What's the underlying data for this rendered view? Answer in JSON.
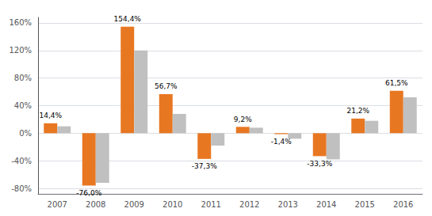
{
  "chart_data": {
    "type": "bar",
    "categories": [
      "2007",
      "2008",
      "2009",
      "2010",
      "2011",
      "2012",
      "2013",
      "2014",
      "2015",
      "2016"
    ],
    "series": [
      {
        "color": "#E87722",
        "values": [
          14.4,
          -76.0,
          154.4,
          56.7,
          -37.3,
          9.2,
          -1.4,
          -33.3,
          21.2,
          61.5
        ],
        "value_labels": [
          "14,4%",
          "-76,0%",
          "154,4%",
          "56,7%",
          "-37,3%",
          "9,2%",
          "-1,4%",
          "-33,3%",
          "21,2%",
          "61,5%"
        ],
        "data_labels": true
      },
      {
        "color": "#C0C0C0",
        "values": [
          10.0,
          -72.0,
          120.0,
          28.0,
          -18.0,
          8.0,
          -8.0,
          -38.0,
          18.0,
          52.0
        ]
      }
    ],
    "ylim": [
      -88,
      168
    ],
    "yticks": [
      {
        "value": -80,
        "label": "-80%"
      },
      {
        "value": -40,
        "label": "-40%"
      },
      {
        "value": 0,
        "label": "0%"
      },
      {
        "value": 40,
        "label": "40%"
      },
      {
        "value": 80,
        "label": "80%"
      },
      {
        "value": 120,
        "label": "120%"
      },
      {
        "value": 160,
        "label": "160%"
      }
    ],
    "grid": true
  }
}
